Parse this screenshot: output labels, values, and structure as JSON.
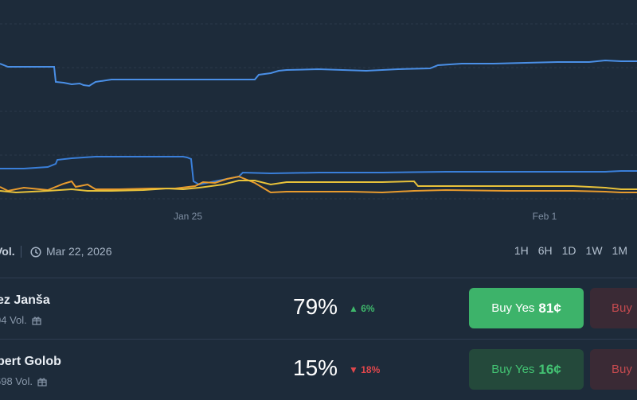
{
  "chart": {
    "x_ticks": [
      "Jan 25",
      "Feb 1"
    ],
    "line_colors": [
      "#4a8fe6",
      "#3a7fd9",
      "#e89b2e",
      "#e8c23a"
    ]
  },
  "meta": {
    "volume_label": "Vol.",
    "date": "Mar 22, 2026",
    "ranges": [
      "1H",
      "6H",
      "1D",
      "1W",
      "1M"
    ]
  },
  "outcomes": [
    {
      "name": "ez Janša",
      "volume": "04 Vol.",
      "percent": "79%",
      "change": "6%",
      "change_dir": "up",
      "buy_yes_label": "Buy Yes",
      "buy_yes_price": "81¢",
      "buy_no_label": "Buy"
    },
    {
      "name": "bert Golob",
      "volume": "698 Vol.",
      "percent": "15%",
      "change": "18%",
      "change_dir": "down",
      "buy_yes_label": "Buy Yes",
      "buy_yes_price": "16¢",
      "buy_no_label": "Buy"
    }
  ],
  "colors": {
    "background": "#1d2b3a",
    "yes_active": "#3db36a",
    "yes_muted": "#24493b",
    "up": "#3fb86b",
    "down": "#e0474c"
  }
}
